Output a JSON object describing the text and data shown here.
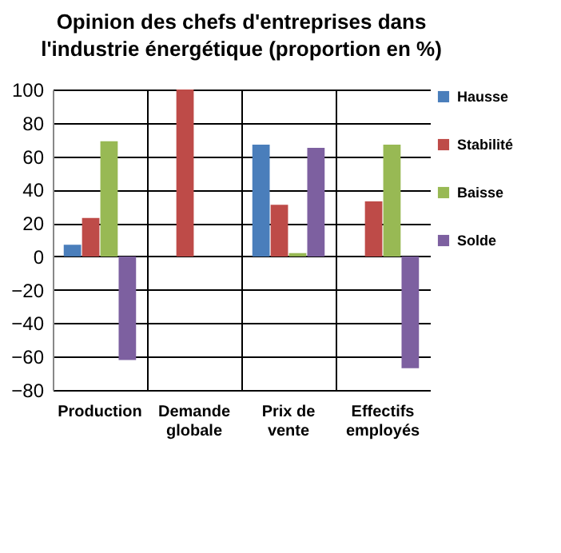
{
  "chart_data": {
    "type": "bar",
    "title": "Opinion des chefs d'entreprises dans l'industrie énergétique (proportion en %)",
    "categories": [
      "Production",
      "Demande globale",
      "Prix de vente",
      "Effectifs employés"
    ],
    "series": [
      {
        "name": "Hausse",
        "color": "#4a7ebb",
        "values": [
          7,
          0,
          67,
          0
        ]
      },
      {
        "name": "Stabilité",
        "color": "#be4b48",
        "values": [
          23,
          100,
          31,
          33
        ]
      },
      {
        "name": "Baisse",
        "color": "#98b954",
        "values": [
          69,
          0,
          2,
          67
        ]
      },
      {
        "name": "Solde",
        "color": "#7d60a0",
        "values": [
          -62,
          0,
          65,
          -67
        ]
      }
    ],
    "ylim": [
      -80,
      100
    ],
    "yticks": [
      -80,
      -60,
      -40,
      -20,
      0,
      20,
      40,
      60,
      80,
      100
    ],
    "grid": true,
    "legend": "right"
  }
}
